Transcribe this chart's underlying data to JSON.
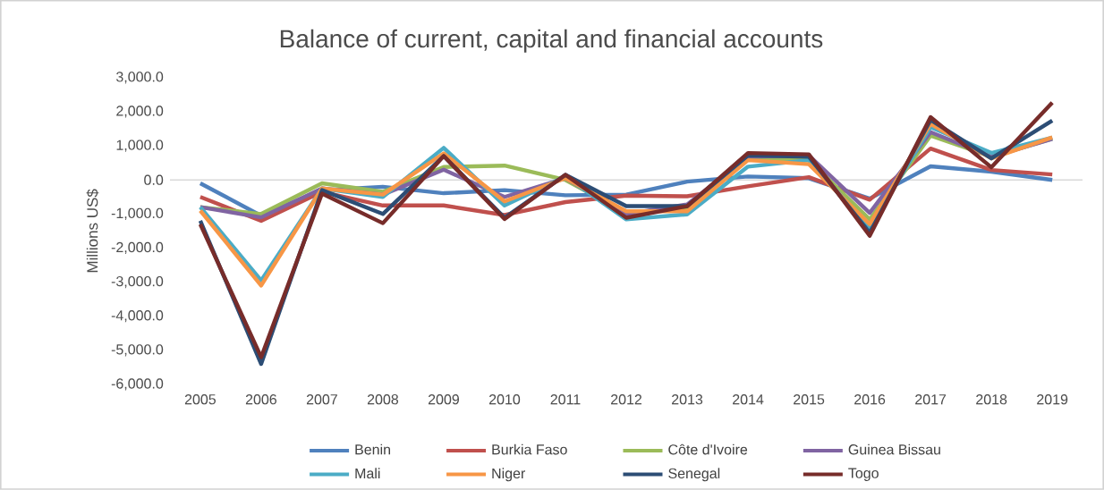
{
  "chart_data": {
    "type": "line",
    "title": "Balance of current, capital and financial accounts",
    "ylabel": "Millions US$",
    "categories": [
      "2005",
      "2006",
      "2007",
      "2008",
      "2009",
      "2010",
      "2011",
      "2012",
      "2013",
      "2014",
      "2015",
      "2016",
      "2017",
      "2018",
      "2019"
    ],
    "series": [
      {
        "name": "Benin",
        "color": "#4f81bd",
        "values": [
          -100,
          -1050,
          -300,
          -200,
          -390,
          -300,
          -450,
          -430,
          -50,
          100,
          50,
          -550,
          400,
          240,
          0
        ]
      },
      {
        "name": "Burkia Faso",
        "color": "#c0504d",
        "values": [
          -500,
          -1200,
          -350,
          -750,
          -750,
          -1030,
          -650,
          -460,
          -480,
          -190,
          80,
          -580,
          920,
          290,
          160
        ]
      },
      {
        "name": "Côte d'Ivoire",
        "color": "#9bbb59",
        "values": [
          -800,
          -1000,
          -100,
          -350,
          380,
          420,
          0,
          -970,
          -820,
          630,
          580,
          -1160,
          1300,
          680,
          1210
        ]
      },
      {
        "name": "Guinea Bissau",
        "color": "#8064a2",
        "values": [
          -800,
          -1100,
          -250,
          -430,
          300,
          -500,
          50,
          -1000,
          -720,
          680,
          720,
          -970,
          1400,
          680,
          1200
        ]
      },
      {
        "name": "Mali",
        "color": "#4bacc6",
        "values": [
          -800,
          -2950,
          -250,
          -500,
          940,
          -750,
          100,
          -1160,
          -1010,
          390,
          580,
          -1400,
          1550,
          790,
          1240
        ]
      },
      {
        "name": "Niger",
        "color": "#f79646",
        "values": [
          -900,
          -3100,
          -250,
          -430,
          780,
          -630,
          50,
          -920,
          -920,
          580,
          460,
          -1300,
          1640,
          630,
          1250
        ]
      },
      {
        "name": "Senegal",
        "color": "#2c4d75",
        "values": [
          -1200,
          -5400,
          -300,
          -1000,
          700,
          -1110,
          150,
          -770,
          -770,
          720,
          680,
          -1550,
          1760,
          630,
          1740
        ]
      },
      {
        "name": "Togo",
        "color": "#772c2a",
        "values": [
          -1300,
          -5200,
          -400,
          -1270,
          700,
          -1150,
          150,
          -1110,
          -770,
          790,
          750,
          -1640,
          1840,
          370,
          2270
        ]
      }
    ],
    "ylim": [
      -6000,
      3000
    ],
    "yticks": [
      {
        "value": -6000,
        "label": "-6,000.0"
      },
      {
        "value": -5000,
        "label": "-5,000.0"
      },
      {
        "value": -4000,
        "label": "-4,000.0"
      },
      {
        "value": -3000,
        "label": "-3,000.0"
      },
      {
        "value": -2000,
        "label": "-2,000.0"
      },
      {
        "value": -1000,
        "label": "-1,000.0"
      },
      {
        "value": 0,
        "label": "0.0"
      },
      {
        "value": 1000,
        "label": "1,000.0"
      },
      {
        "value": 2000,
        "label": "2,000.0"
      },
      {
        "value": 3000,
        "label": "3,000.0"
      }
    ],
    "ref_lines": [
      {
        "axis": "y",
        "value": 0,
        "color": "#d9d9d9"
      }
    ],
    "grid": false,
    "legend": "bottom",
    "marker": "none",
    "line_style": "solid"
  }
}
